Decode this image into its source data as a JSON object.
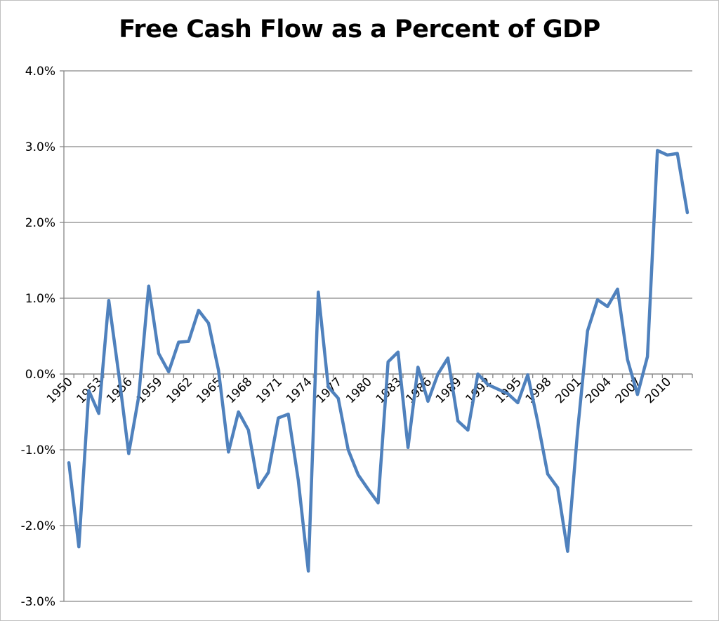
{
  "chart_data": {
    "type": "line",
    "title": "Free Cash Flow as a Percent of GDP",
    "xlabel": "",
    "ylabel": "",
    "ylim": [
      -3.0,
      4.0
    ],
    "y_ticks": [
      "4.0%",
      "3.0%",
      "2.0%",
      "1.0%",
      "0.0%",
      "-1.0%",
      "-2.0%",
      "-3.0%"
    ],
    "x_tick_labels": [
      "1950",
      "1953",
      "1956",
      "1959",
      "1962",
      "1965",
      "1968",
      "1971",
      "1974",
      "1977",
      "1980",
      "1983",
      "1986",
      "1989",
      "1992",
      "1995",
      "1998",
      "2001",
      "2004",
      "2007",
      "2010"
    ],
    "grid": "horizontal",
    "legend": "none",
    "line_color": "#4f81bd",
    "x": [
      1950,
      1951,
      1952,
      1953,
      1954,
      1955,
      1956,
      1957,
      1958,
      1959,
      1960,
      1961,
      1962,
      1963,
      1964,
      1965,
      1966,
      1967,
      1968,
      1969,
      1970,
      1971,
      1972,
      1973,
      1974,
      1975,
      1976,
      1977,
      1978,
      1979,
      1980,
      1981,
      1982,
      1983,
      1984,
      1985,
      1986,
      1987,
      1988,
      1989,
      1990,
      1991,
      1992,
      1993,
      1994,
      1995,
      1996,
      1997,
      1998,
      1999,
      2000,
      2001,
      2002,
      2003,
      2004,
      2005,
      2006,
      2007,
      2008,
      2009,
      2010,
      2011,
      2012
    ],
    "values": [
      -1.17,
      -2.28,
      -0.22,
      -0.52,
      0.97,
      0.0,
      -1.05,
      -0.3,
      1.16,
      0.27,
      0.03,
      0.42,
      0.43,
      0.84,
      0.67,
      0.05,
      -1.03,
      -0.5,
      -0.74,
      -1.5,
      -1.3,
      -0.58,
      -0.53,
      -1.4,
      -2.6,
      1.08,
      -0.17,
      -0.32,
      -1.0,
      -1.33,
      -1.52,
      -1.7,
      0.16,
      0.29,
      -0.97,
      0.09,
      -0.36,
      0.0,
      0.21,
      -0.62,
      -0.74,
      0.0,
      -0.14,
      -0.2,
      -0.26,
      -0.38,
      -0.01,
      -0.63,
      -1.32,
      -1.5,
      -2.34,
      -0.75,
      0.57,
      0.98,
      0.89,
      1.12,
      0.19,
      -0.27,
      0.23,
      2.95,
      2.89,
      2.91,
      2.13
    ]
  }
}
